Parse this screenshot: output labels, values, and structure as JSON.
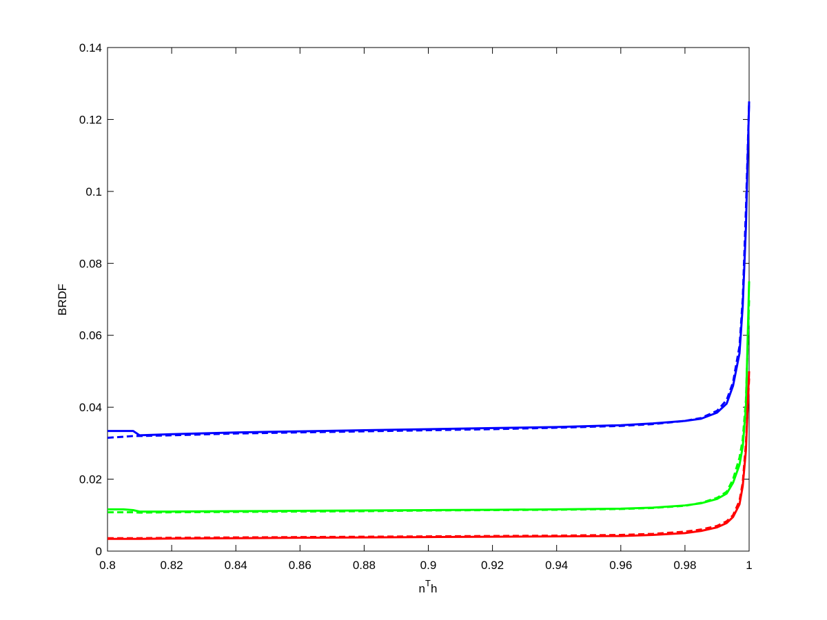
{
  "chart_data": {
    "type": "line",
    "xlabel_parts": [
      "n",
      "T",
      "h"
    ],
    "ylabel": "BRDF",
    "x": [
      0.8,
      0.805,
      0.808,
      0.81,
      0.82,
      0.84,
      0.86,
      0.88,
      0.9,
      0.92,
      0.94,
      0.96,
      0.97,
      0.98,
      0.985,
      0.99,
      0.993,
      0.995,
      0.997,
      0.998,
      0.999,
      1.0
    ],
    "series": [
      {
        "color": "#0000ff",
        "dashed": false,
        "values": [
          0.0334,
          0.0334,
          0.0334,
          0.0322,
          0.0325,
          0.033,
          0.0333,
          0.0336,
          0.0339,
          0.0342,
          0.0345,
          0.035,
          0.0355,
          0.0362,
          0.0368,
          0.0385,
          0.041,
          0.046,
          0.055,
          0.068,
          0.09,
          0.125
        ]
      },
      {
        "color": "#0000ff",
        "dashed": true,
        "values": [
          0.0315,
          0.0318,
          0.032,
          0.032,
          0.0322,
          0.0327,
          0.033,
          0.0333,
          0.0336,
          0.0339,
          0.0343,
          0.0348,
          0.0353,
          0.0362,
          0.037,
          0.039,
          0.042,
          0.047,
          0.057,
          0.07,
          0.095,
          0.125
        ]
      },
      {
        "color": "#00ff00",
        "dashed": false,
        "values": [
          0.0116,
          0.0116,
          0.0114,
          0.011,
          0.011,
          0.0111,
          0.0112,
          0.0113,
          0.0114,
          0.0115,
          0.0116,
          0.0118,
          0.0121,
          0.0127,
          0.0133,
          0.0145,
          0.016,
          0.019,
          0.024,
          0.029,
          0.04,
          0.075
        ]
      },
      {
        "color": "#00ff00",
        "dashed": true,
        "values": [
          0.0108,
          0.0108,
          0.0108,
          0.0107,
          0.0108,
          0.0109,
          0.011,
          0.0111,
          0.0113,
          0.0114,
          0.0115,
          0.0117,
          0.012,
          0.0126,
          0.0134,
          0.0148,
          0.0165,
          0.02,
          0.026,
          0.031,
          0.042,
          0.07
        ]
      },
      {
        "color": "#ff0000",
        "dashed": false,
        "values": [
          0.0034,
          0.0034,
          0.0034,
          0.0034,
          0.0035,
          0.0036,
          0.0037,
          0.0038,
          0.0039,
          0.004,
          0.0041,
          0.0042,
          0.0045,
          0.005,
          0.0056,
          0.0066,
          0.0078,
          0.0095,
          0.013,
          0.018,
          0.028,
          0.05
        ]
      },
      {
        "color": "#ff0000",
        "dashed": true,
        "values": [
          0.0036,
          0.0036,
          0.0036,
          0.0036,
          0.0037,
          0.0038,
          0.0039,
          0.004,
          0.0041,
          0.0042,
          0.0043,
          0.0045,
          0.0048,
          0.0054,
          0.006,
          0.007,
          0.0083,
          0.01,
          0.014,
          0.019,
          0.03,
          0.048
        ]
      }
    ],
    "xlim": [
      0.8,
      1
    ],
    "xticks": [
      0.8,
      0.82,
      0.84,
      0.86,
      0.88,
      0.9,
      0.92,
      0.94,
      0.96,
      0.98,
      1
    ],
    "ylim": [
      0,
      0.14
    ],
    "yticks": [
      0,
      0.02,
      0.04,
      0.06,
      0.08,
      0.1,
      0.12,
      0.14
    ],
    "grid": false
  }
}
